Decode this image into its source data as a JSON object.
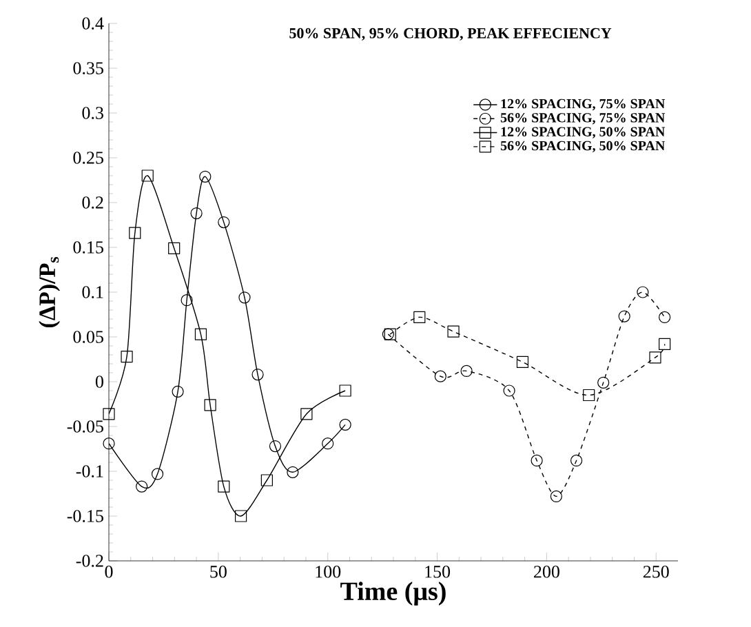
{
  "chart_data": {
    "type": "line",
    "title": "50% SPAN, 95% CHORD, PEAK EFFECIENCY",
    "xlabel": "Time (μs)",
    "ylabel": "(ΔP)/P$_{s}$",
    "xlim": [
      0,
      260
    ],
    "xticks": [
      0,
      50,
      100,
      150,
      200,
      250
    ],
    "ylim": [
      -0.2,
      0.4
    ],
    "yticks": [
      -0.2,
      -0.15,
      -0.1,
      -0.05,
      0,
      0.05,
      0.1,
      0.15,
      0.2,
      0.25,
      0.3,
      0.35,
      0.4
    ],
    "grid": false,
    "legend": "top right",
    "series": [
      {
        "name": "12% SPACING, 75% SPAN",
        "color": "#000000",
        "marker": "circle",
        "line_style": "solid",
        "x": [
          0,
          15,
          22.2,
          31.5,
          35.6,
          40,
          44,
          52.5,
          62,
          68,
          76,
          84,
          100,
          108
        ],
        "values": [
          -0.069,
          -0.117,
          -0.103,
          -0.011,
          0.091,
          0.188,
          0.229,
          0.178,
          0.094,
          0.008,
          -0.072,
          -0.101,
          -0.069,
          -0.048
        ]
      },
      {
        "name": "56% SPACING, 75% SPAN",
        "color": "#000000",
        "marker": "circle",
        "line_style": "dashed",
        "x": [
          127.6,
          151.5,
          163.4,
          182.9,
          195.5,
          204.4,
          213.6,
          225.9,
          235.5,
          243.9,
          253.9
        ],
        "values": [
          0.053,
          0.006,
          0.012,
          -0.01,
          -0.088,
          -0.128,
          -0.088,
          -0.001,
          0.073,
          0.1,
          0.072
        ]
      },
      {
        "name": "12% SPACING, 50% SPAN",
        "color": "#000000",
        "marker": "square",
        "line_style": "solid",
        "x": [
          0,
          8.2,
          11.9,
          17.7,
          29.8,
          42,
          46.3,
          52.5,
          60.3,
          72.2,
          90.3,
          108
        ],
        "values": [
          -0.036,
          0.028,
          0.166,
          0.23,
          0.149,
          0.053,
          -0.026,
          -0.117,
          -0.15,
          -0.11,
          -0.036,
          -0.01
        ]
      },
      {
        "name": "56% SPACING, 50% SPAN",
        "color": "#000000",
        "marker": "square",
        "line_style": "dashed",
        "x": [
          128.5,
          141.9,
          157.4,
          189,
          219.3,
          249.6,
          253.9
        ],
        "values": [
          0.053,
          0.072,
          0.056,
          0.022,
          -0.015,
          0.027,
          0.042
        ]
      }
    ]
  }
}
